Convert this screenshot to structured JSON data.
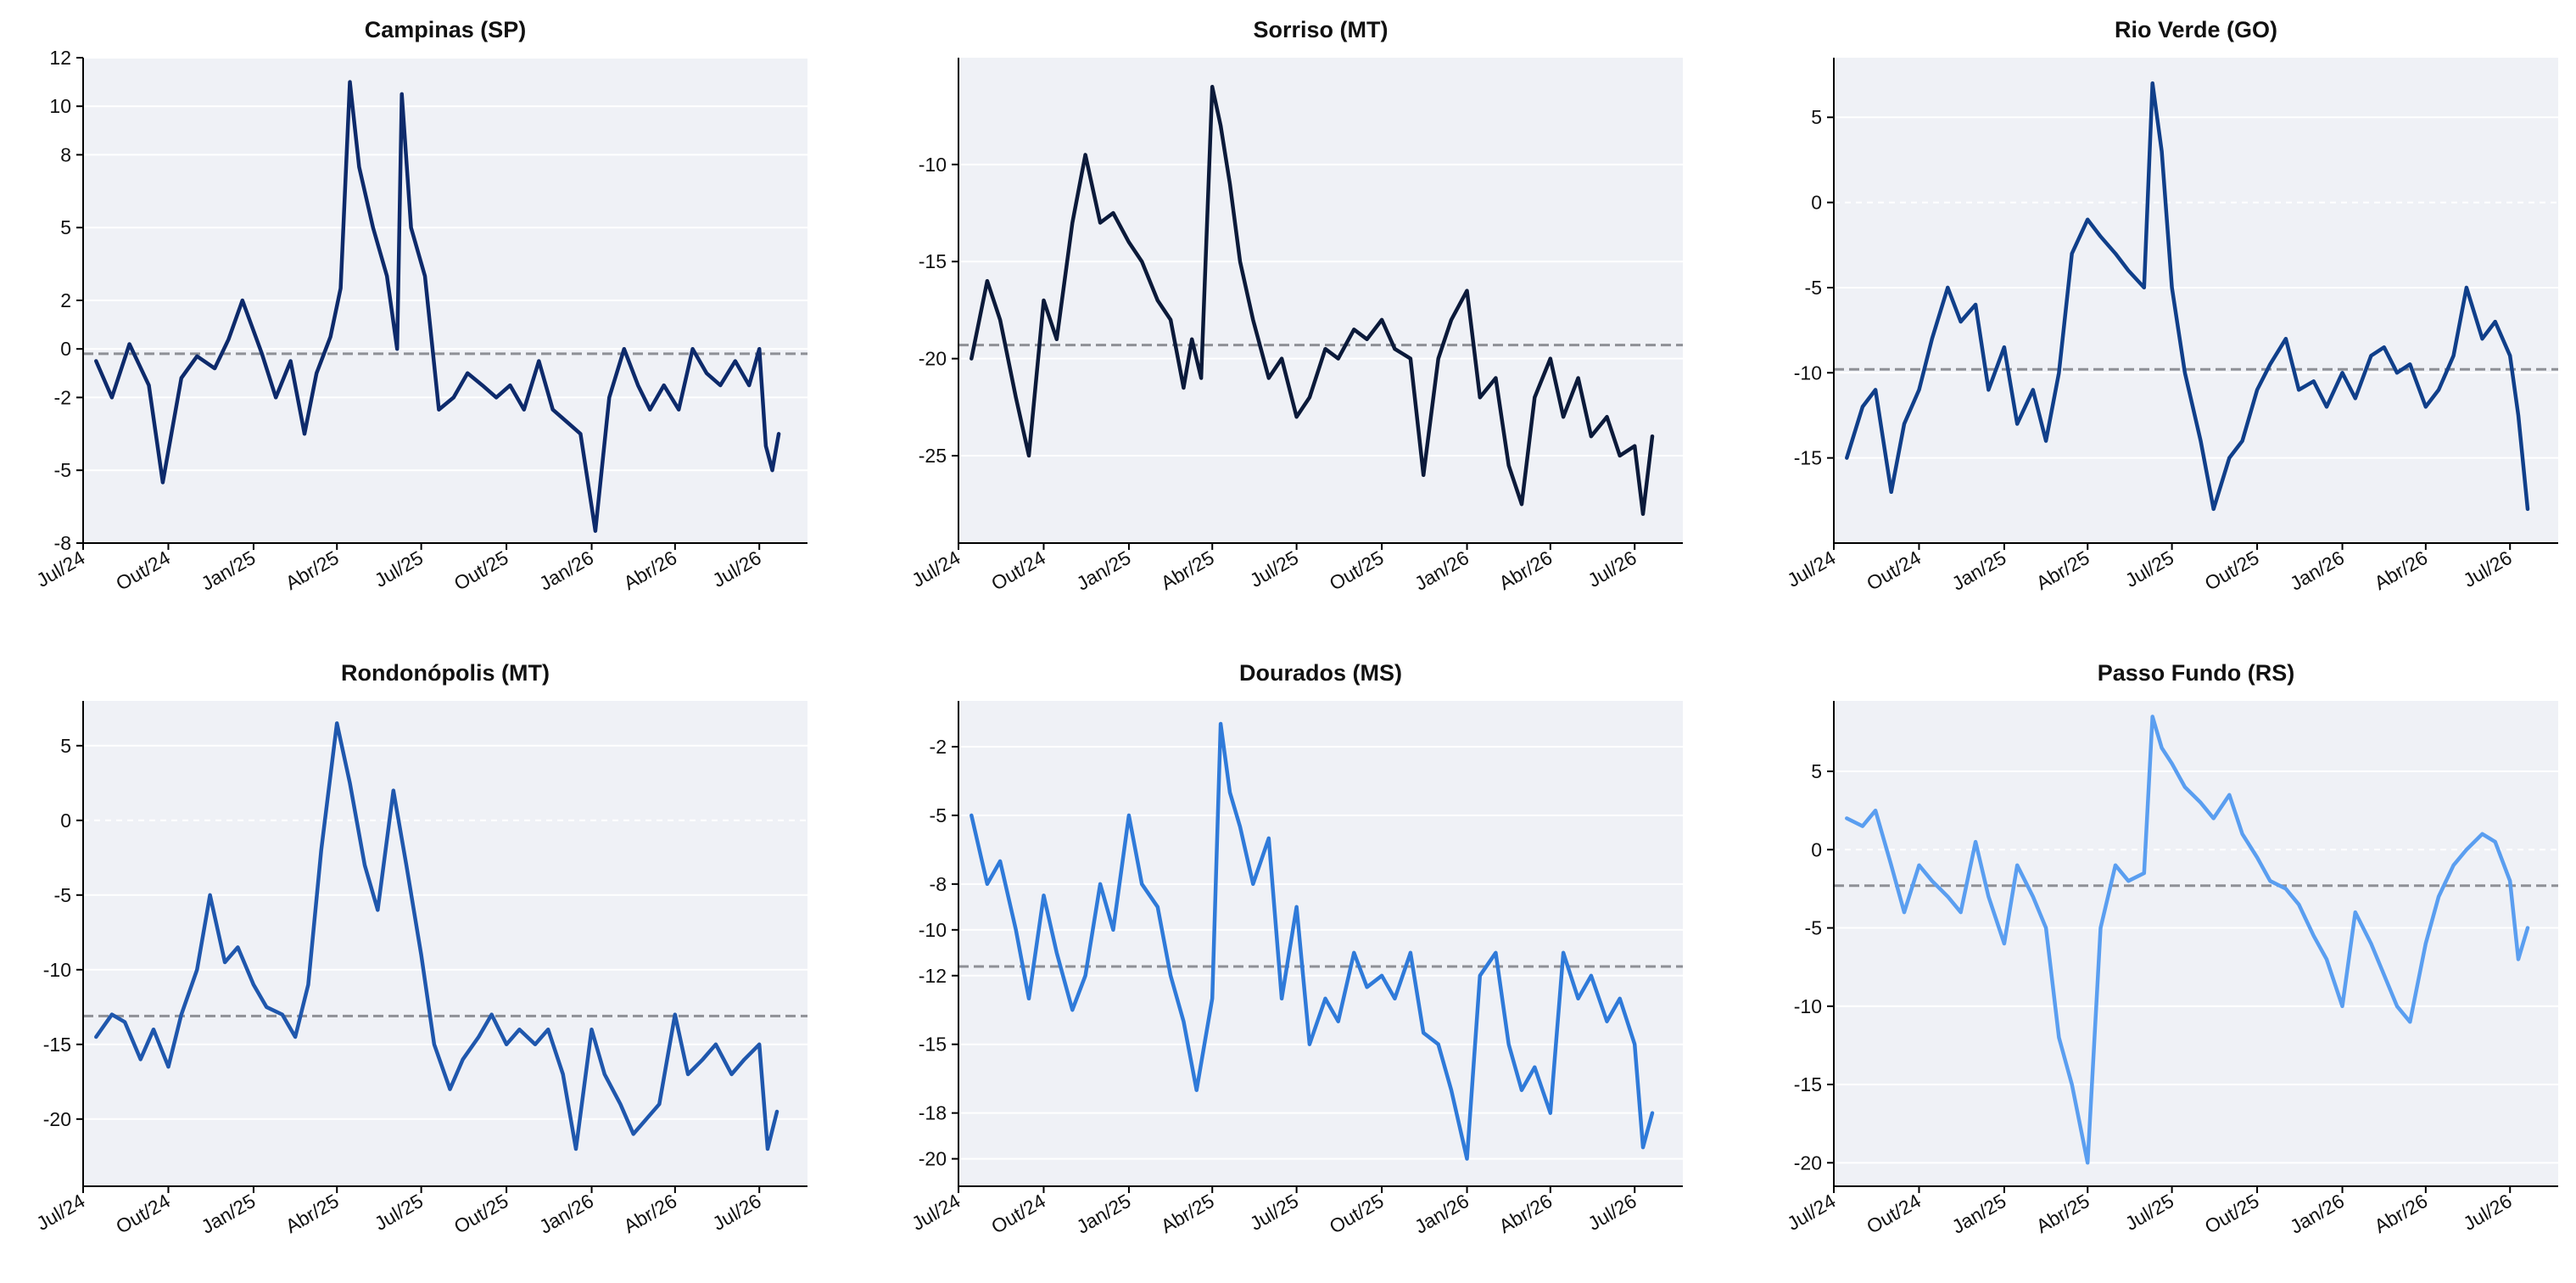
{
  "chart_data": [
    {
      "type": "line",
      "title": "Campinas (SP)",
      "color": "#0d2a6b",
      "x_ticks": [
        "Jul/24",
        "Out/24",
        "Jan/25",
        "Abr/25",
        "Jul/25",
        "Out/25",
        "Jan/26",
        "Abr/26",
        "Jul/26"
      ],
      "y_ticks": [
        "12",
        "10",
        "8",
        "5",
        "2",
        "0",
        "-2",
        "-5",
        "-8"
      ],
      "ylim": [
        -8,
        12
      ],
      "mean": -0.2,
      "show_zero_line": false,
      "x": [
        "2024-07-15",
        "2024-08-01",
        "2024-08-20",
        "2024-09-10",
        "2024-09-25",
        "2024-10-15",
        "2024-11-01",
        "2024-11-20",
        "2024-12-05",
        "2024-12-20",
        "2025-01-10",
        "2025-01-25",
        "2025-02-10",
        "2025-02-25",
        "2025-03-10",
        "2025-03-25",
        "2025-04-05",
        "2025-04-15",
        "2025-04-25",
        "2025-05-10",
        "2025-05-25",
        "2025-06-05",
        "2025-06-10",
        "2025-06-20",
        "2025-07-05",
        "2025-07-20",
        "2025-08-05",
        "2025-08-20",
        "2025-09-05",
        "2025-09-20",
        "2025-10-05",
        "2025-10-20",
        "2025-11-05",
        "2025-11-20",
        "2025-12-05",
        "2025-12-20",
        "2026-01-05",
        "2026-01-20",
        "2026-02-05",
        "2026-02-20",
        "2026-03-05",
        "2026-03-20",
        "2026-04-05",
        "2026-04-20",
        "2026-05-05",
        "2026-05-20",
        "2026-06-05",
        "2026-06-20",
        "2026-07-01",
        "2026-07-08",
        "2026-07-15",
        "2026-07-22"
      ],
      "y": [
        -0.5,
        -2.0,
        0.2,
        -1.5,
        -5.5,
        -1.2,
        -0.3,
        -0.8,
        0.4,
        2.0,
        -0.2,
        -2.0,
        -0.5,
        -3.5,
        -1.0,
        0.5,
        2.5,
        11.0,
        7.5,
        5.0,
        3.0,
        0.0,
        10.5,
        5.0,
        3.0,
        -2.5,
        -2.0,
        -1.0,
        -1.5,
        -2.0,
        -1.5,
        -2.5,
        -0.5,
        -2.5,
        -3.0,
        -3.5,
        -7.5,
        -2.0,
        0.0,
        -1.5,
        -2.5,
        -1.5,
        -2.5,
        0.0,
        -1.0,
        -1.5,
        -0.5,
        -1.5,
        0.0,
        -4.0,
        -5.0,
        -3.5
      ]
    },
    {
      "type": "line",
      "title": "Sorriso (MT)",
      "color": "#0b1a3a",
      "x_ticks": [
        "Jul/24",
        "Out/24",
        "Jan/25",
        "Abr/25",
        "Jul/25",
        "Out/25",
        "Jan/26",
        "Abr/26",
        "Jul/26"
      ],
      "y_ticks": [
        "-10",
        "-15",
        "-20",
        "-25"
      ],
      "ylim": [
        -29.5,
        -4.5
      ],
      "mean": -19.3,
      "show_zero_line": false,
      "x": [
        "2024-07-15",
        "2024-08-01",
        "2024-08-15",
        "2024-09-01",
        "2024-09-15",
        "2024-10-01",
        "2024-10-15",
        "2024-11-01",
        "2024-11-15",
        "2024-12-01",
        "2024-12-15",
        "2025-01-01",
        "2025-01-15",
        "2025-02-01",
        "2025-02-15",
        "2025-03-01",
        "2025-03-10",
        "2025-03-20",
        "2025-04-01",
        "2025-04-10",
        "2025-04-20",
        "2025-05-01",
        "2025-05-15",
        "2025-06-01",
        "2025-06-15",
        "2025-07-01",
        "2025-07-15",
        "2025-08-01",
        "2025-08-15",
        "2025-09-01",
        "2025-09-15",
        "2025-10-01",
        "2025-10-15",
        "2025-11-01",
        "2025-11-15",
        "2025-12-01",
        "2025-12-15",
        "2026-01-01",
        "2026-01-15",
        "2026-02-01",
        "2026-02-15",
        "2026-03-01",
        "2026-03-15",
        "2026-04-01",
        "2026-04-15",
        "2026-05-01",
        "2026-05-15",
        "2026-06-01",
        "2026-06-15",
        "2026-07-01",
        "2026-07-10",
        "2026-07-20"
      ],
      "y": [
        -20.0,
        -16.0,
        -18.0,
        -22.0,
        -25.0,
        -17.0,
        -19.0,
        -13.0,
        -9.5,
        -13.0,
        -12.5,
        -14.0,
        -15.0,
        -17.0,
        -18.0,
        -21.5,
        -19.0,
        -21.0,
        -6.0,
        -8.0,
        -11.0,
        -15.0,
        -18.0,
        -21.0,
        -20.0,
        -23.0,
        -22.0,
        -19.5,
        -20.0,
        -18.5,
        -19.0,
        -18.0,
        -19.5,
        -20.0,
        -26.0,
        -20.0,
        -18.0,
        -16.5,
        -22.0,
        -21.0,
        -25.5,
        -27.5,
        -22.0,
        -20.0,
        -23.0,
        -21.0,
        -24.0,
        -23.0,
        -25.0,
        -24.5,
        -28.0,
        -24.0
      ]
    },
    {
      "type": "line",
      "title": "Rio Verde (GO)",
      "color": "#103f8a",
      "x_ticks": [
        "Jul/24",
        "Out/24",
        "Jan/25",
        "Abr/25",
        "Jul/25",
        "Out/25",
        "Jan/26",
        "Abr/26",
        "Jul/26"
      ],
      "y_ticks": [
        "5",
        "0",
        "-5",
        "-10",
        "-15"
      ],
      "ylim": [
        -20,
        8.5
      ],
      "mean": -9.8,
      "show_zero_line": true,
      "x": [
        "2024-07-15",
        "2024-08-01",
        "2024-08-15",
        "2024-09-01",
        "2024-09-15",
        "2024-10-01",
        "2024-10-15",
        "2024-11-01",
        "2024-11-15",
        "2024-12-01",
        "2024-12-15",
        "2025-01-01",
        "2025-01-15",
        "2025-02-01",
        "2025-02-15",
        "2025-03-01",
        "2025-03-15",
        "2025-04-01",
        "2025-04-15",
        "2025-05-01",
        "2025-05-15",
        "2025-06-01",
        "2025-06-10",
        "2025-06-20",
        "2025-07-01",
        "2025-07-15",
        "2025-08-01",
        "2025-08-15",
        "2025-09-01",
        "2025-09-15",
        "2025-10-01",
        "2025-10-15",
        "2025-11-01",
        "2025-11-15",
        "2025-12-01",
        "2025-12-15",
        "2026-01-01",
        "2026-01-15",
        "2026-02-01",
        "2026-02-15",
        "2026-03-01",
        "2026-03-15",
        "2026-04-01",
        "2026-04-15",
        "2026-05-01",
        "2026-05-15",
        "2026-06-01",
        "2026-06-15",
        "2026-07-01",
        "2026-07-10",
        "2026-07-20"
      ],
      "y": [
        -15.0,
        -12.0,
        -11.0,
        -17.0,
        -13.0,
        -11.0,
        -8.0,
        -5.0,
        -7.0,
        -6.0,
        -11.0,
        -8.5,
        -13.0,
        -11.0,
        -14.0,
        -10.0,
        -3.0,
        -1.0,
        -2.0,
        -3.0,
        -4.0,
        -5.0,
        7.0,
        3.0,
        -5.0,
        -10.0,
        -14.0,
        -18.0,
        -15.0,
        -14.0,
        -11.0,
        -9.5,
        -8.0,
        -11.0,
        -10.5,
        -12.0,
        -10.0,
        -11.5,
        -9.0,
        -8.5,
        -10.0,
        -9.5,
        -12.0,
        -11.0,
        -9.0,
        -5.0,
        -8.0,
        -7.0,
        -9.0,
        -12.5,
        -18.0
      ]
    },
    {
      "type": "line",
      "title": "Rondonópolis (MT)",
      "color": "#1f57ad",
      "x_ticks": [
        "Jul/24",
        "Out/24",
        "Jan/25",
        "Abr/25",
        "Jul/25",
        "Out/25",
        "Jan/26",
        "Abr/26",
        "Jul/26"
      ],
      "y_ticks": [
        "5",
        "0",
        "-5",
        "-10",
        "-15",
        "-20"
      ],
      "ylim": [
        -24.5,
        8.0
      ],
      "mean": -13.1,
      "show_zero_line": true,
      "x": [
        "2024-07-15",
        "2024-08-01",
        "2024-08-15",
        "2024-09-01",
        "2024-09-15",
        "2024-10-01",
        "2024-10-15",
        "2024-11-01",
        "2024-11-15",
        "2024-12-01",
        "2024-12-15",
        "2025-01-01",
        "2025-01-15",
        "2025-02-01",
        "2025-02-15",
        "2025-03-01",
        "2025-03-15",
        "2025-04-01",
        "2025-04-15",
        "2025-05-01",
        "2025-05-15",
        "2025-06-01",
        "2025-06-15",
        "2025-07-01",
        "2025-07-15",
        "2025-08-01",
        "2025-08-15",
        "2025-09-01",
        "2025-09-15",
        "2025-10-01",
        "2025-10-15",
        "2025-11-01",
        "2025-11-15",
        "2025-12-01",
        "2025-12-15",
        "2026-01-01",
        "2026-01-15",
        "2026-02-01",
        "2026-02-15",
        "2026-03-01",
        "2026-03-15",
        "2026-04-01",
        "2026-04-15",
        "2026-05-01",
        "2026-05-15",
        "2026-06-01",
        "2026-06-15",
        "2026-07-01",
        "2026-07-10",
        "2026-07-20"
      ],
      "y": [
        -14.5,
        -13.0,
        -13.5,
        -16.0,
        -14.0,
        -16.5,
        -13.0,
        -10.0,
        -5.0,
        -9.5,
        -8.5,
        -11.0,
        -12.5,
        -13.0,
        -14.5,
        -11.0,
        -2.0,
        6.5,
        2.5,
        -3.0,
        -6.0,
        2.0,
        -3.0,
        -9.0,
        -15.0,
        -18.0,
        -16.0,
        -14.5,
        -13.0,
        -15.0,
        -14.0,
        -15.0,
        -14.0,
        -17.0,
        -22.0,
        -14.0,
        -17.0,
        -19.0,
        -21.0,
        -20.0,
        -19.0,
        -13.0,
        -17.0,
        -16.0,
        -15.0,
        -17.0,
        -16.0,
        -15.0,
        -22.0,
        -19.5
      ]
    },
    {
      "type": "line",
      "title": "Dourados (MS)",
      "color": "#2f7ad9",
      "x_ticks": [
        "Jul/24",
        "Out/24",
        "Jan/25",
        "Abr/25",
        "Jul/25",
        "Out/25",
        "Jan/26",
        "Abr/26",
        "Jul/26"
      ],
      "y_ticks": [
        "-2",
        "-5",
        "-8",
        "-10",
        "-12",
        "-15",
        "-18",
        "-20"
      ],
      "ylim": [
        -21.2,
        0.0
      ],
      "mean": -11.6,
      "show_zero_line": false,
      "x": [
        "2024-07-15",
        "2024-08-01",
        "2024-08-15",
        "2024-09-01",
        "2024-09-15",
        "2024-10-01",
        "2024-10-15",
        "2024-11-01",
        "2024-11-15",
        "2024-12-01",
        "2024-12-15",
        "2025-01-01",
        "2025-01-15",
        "2025-02-01",
        "2025-02-15",
        "2025-03-01",
        "2025-03-15",
        "2025-04-01",
        "2025-04-10",
        "2025-04-20",
        "2025-05-01",
        "2025-05-15",
        "2025-06-01",
        "2025-06-15",
        "2025-07-01",
        "2025-07-15",
        "2025-08-01",
        "2025-08-15",
        "2025-09-01",
        "2025-09-15",
        "2025-10-01",
        "2025-10-15",
        "2025-11-01",
        "2025-11-15",
        "2025-12-01",
        "2025-12-15",
        "2026-01-01",
        "2026-01-15",
        "2026-02-01",
        "2026-02-15",
        "2026-03-01",
        "2026-03-15",
        "2026-04-01",
        "2026-04-15",
        "2026-05-01",
        "2026-05-15",
        "2026-06-01",
        "2026-06-15",
        "2026-07-01",
        "2026-07-10",
        "2026-07-20"
      ],
      "y": [
        -5.0,
        -8.0,
        -7.0,
        -10.0,
        -13.0,
        -8.5,
        -11.0,
        -13.5,
        -12.0,
        -8.0,
        -10.0,
        -5.0,
        -8.0,
        -9.0,
        -12.0,
        -14.0,
        -17.0,
        -13.0,
        -1.0,
        -4.0,
        -5.5,
        -8.0,
        -6.0,
        -13.0,
        -9.0,
        -15.0,
        -13.0,
        -14.0,
        -11.0,
        -12.5,
        -12.0,
        -13.0,
        -11.0,
        -14.5,
        -15.0,
        -17.0,
        -20.0,
        -12.0,
        -11.0,
        -15.0,
        -17.0,
        -16.0,
        -18.0,
        -11.0,
        -13.0,
        -12.0,
        -14.0,
        -13.0,
        -15.0,
        -19.5,
        -18.0
      ]
    },
    {
      "type": "line",
      "title": "Passo Fundo (RS)",
      "color": "#5a9ef0",
      "x_ticks": [
        "Jul/24",
        "Out/24",
        "Jan/25",
        "Abr/25",
        "Jul/25",
        "Out/25",
        "Jan/26",
        "Abr/26",
        "Jul/26"
      ],
      "y_ticks": [
        "5",
        "0",
        "-5",
        "-10",
        "-15",
        "-20"
      ],
      "ylim": [
        -21.5,
        9.5
      ],
      "mean": -2.3,
      "show_zero_line": true,
      "x": [
        "2024-07-15",
        "2024-08-01",
        "2024-08-15",
        "2024-09-01",
        "2024-09-15",
        "2024-10-01",
        "2024-10-15",
        "2024-11-01",
        "2024-11-15",
        "2024-12-01",
        "2024-12-15",
        "2025-01-01",
        "2025-01-15",
        "2025-02-01",
        "2025-02-15",
        "2025-03-01",
        "2025-03-15",
        "2025-04-01",
        "2025-04-15",
        "2025-05-01",
        "2025-05-15",
        "2025-06-01",
        "2025-06-10",
        "2025-06-20",
        "2025-07-01",
        "2025-07-15",
        "2025-08-01",
        "2025-08-15",
        "2025-09-01",
        "2025-09-15",
        "2025-10-01",
        "2025-10-15",
        "2025-11-01",
        "2025-11-15",
        "2025-12-01",
        "2025-12-15",
        "2026-01-01",
        "2026-01-15",
        "2026-02-01",
        "2026-02-15",
        "2026-03-01",
        "2026-03-15",
        "2026-04-01",
        "2026-04-15",
        "2026-05-01",
        "2026-05-15",
        "2026-06-01",
        "2026-06-15",
        "2026-07-01",
        "2026-07-10",
        "2026-07-20"
      ],
      "y": [
        2.0,
        1.5,
        2.5,
        -1.0,
        -4.0,
        -1.0,
        -2.0,
        -3.0,
        -4.0,
        0.5,
        -3.0,
        -6.0,
        -1.0,
        -3.0,
        -5.0,
        -12.0,
        -15.0,
        -20.0,
        -5.0,
        -1.0,
        -2.0,
        -1.5,
        8.5,
        6.5,
        5.5,
        4.0,
        3.0,
        2.0,
        3.5,
        1.0,
        -0.5,
        -2.0,
        -2.5,
        -3.5,
        -5.5,
        -7.0,
        -10.0,
        -4.0,
        -6.0,
        -8.0,
        -10.0,
        -11.0,
        -6.0,
        -3.0,
        -1.0,
        0.0,
        1.0,
        0.5,
        -2.0,
        -7.0,
        -5.0
      ]
    }
  ]
}
